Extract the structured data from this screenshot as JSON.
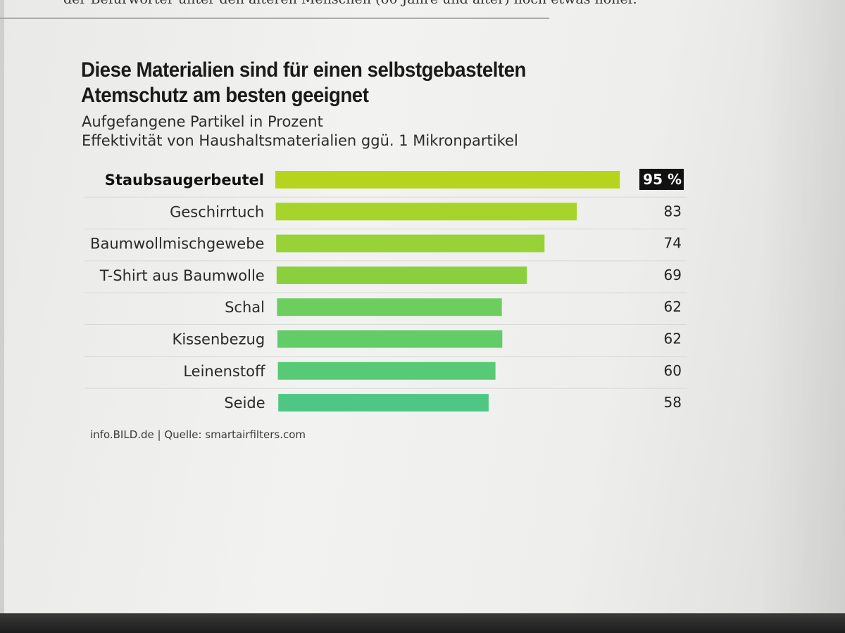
{
  "header": {
    "prev_text": "der Befürworter unter den älteren Menschen (60 Jahre und älter) noch etwas höher."
  },
  "chart_data": {
    "type": "bar",
    "orientation": "horizontal",
    "title": "Diese Materialien sind für einen selbstgebastelten Atemschutz am besten geeignet",
    "subtitle_lines": [
      "Aufgefangene Partikel in Prozent",
      "Effektivität von Haushaltsmaterialien ggü. 1 Mikronpartikel"
    ],
    "categories": [
      "Staubsaugerbeutel",
      "Geschirrtuch",
      "Baumwollmischgewebe",
      "T-Shirt aus Baumwolle",
      "Schal",
      "Kissenbezug",
      "Leinenstoff",
      "Seide"
    ],
    "values": [
      95,
      83,
      74,
      69,
      62,
      62,
      60,
      58
    ],
    "value_labels": [
      "95 %",
      "83",
      "74",
      "69",
      "62",
      "62",
      "60",
      "58"
    ],
    "highlighted_index": 0,
    "bar_colors": [
      "#b7d41c",
      "#a6d42a",
      "#97d236",
      "#8ad03c",
      "#6cce5e",
      "#62cc66",
      "#58c975",
      "#4ec785"
    ],
    "highlight_label_bg": "#111111",
    "xlim": [
      0,
      100
    ],
    "grid": false,
    "source": "info.BILD.de | Quelle: smartairfilters.com"
  }
}
